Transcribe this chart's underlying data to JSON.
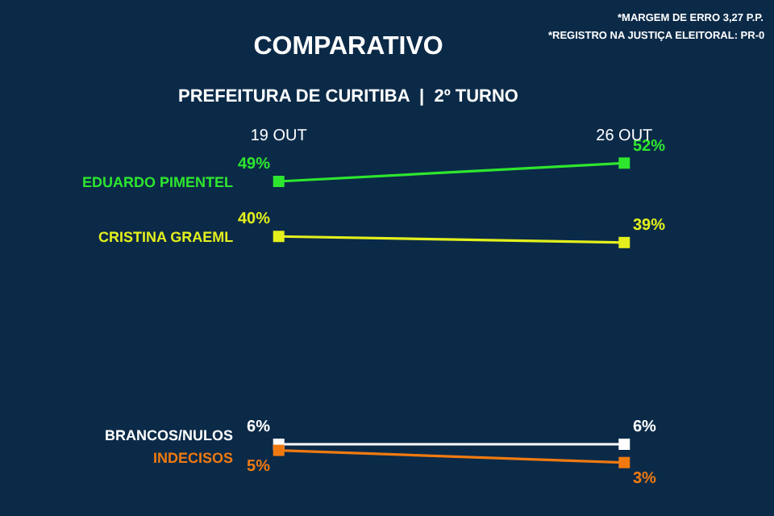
{
  "chart_data": {
    "type": "line",
    "title": "COMPARATIVO",
    "subtitle": "PREFEITURA DE CURITIBA  |  2º TURNO",
    "categories": [
      "19 OUT",
      "26 OUT"
    ],
    "series": [
      {
        "name": "EDUARDO PIMENTEL",
        "color": "#2ee62e",
        "values": [
          49,
          52
        ],
        "value_labels": [
          "49%",
          "52%"
        ]
      },
      {
        "name": "CRISTINA GRAEML",
        "color": "#e3f01c",
        "values": [
          40,
          39
        ],
        "value_labels": [
          "40%",
          "39%"
        ]
      },
      {
        "name": "BRANCOS/NULOS",
        "color": "#ffffff",
        "values": [
          6,
          6
        ],
        "value_labels": [
          "6%",
          "6%"
        ]
      },
      {
        "name": "INDECISOS",
        "color": "#f07a10",
        "values": [
          5,
          3
        ],
        "value_labels": [
          "5%",
          "3%"
        ]
      }
    ],
    "annotations": [
      "*MARGEM DE ERRO 3,27 P.P.",
      "*REGISTRO NA JUSTIÇA ELEITORAL: PR-0"
    ],
    "marker": "square",
    "grid": false,
    "legend": false,
    "tick_labels": "x"
  }
}
